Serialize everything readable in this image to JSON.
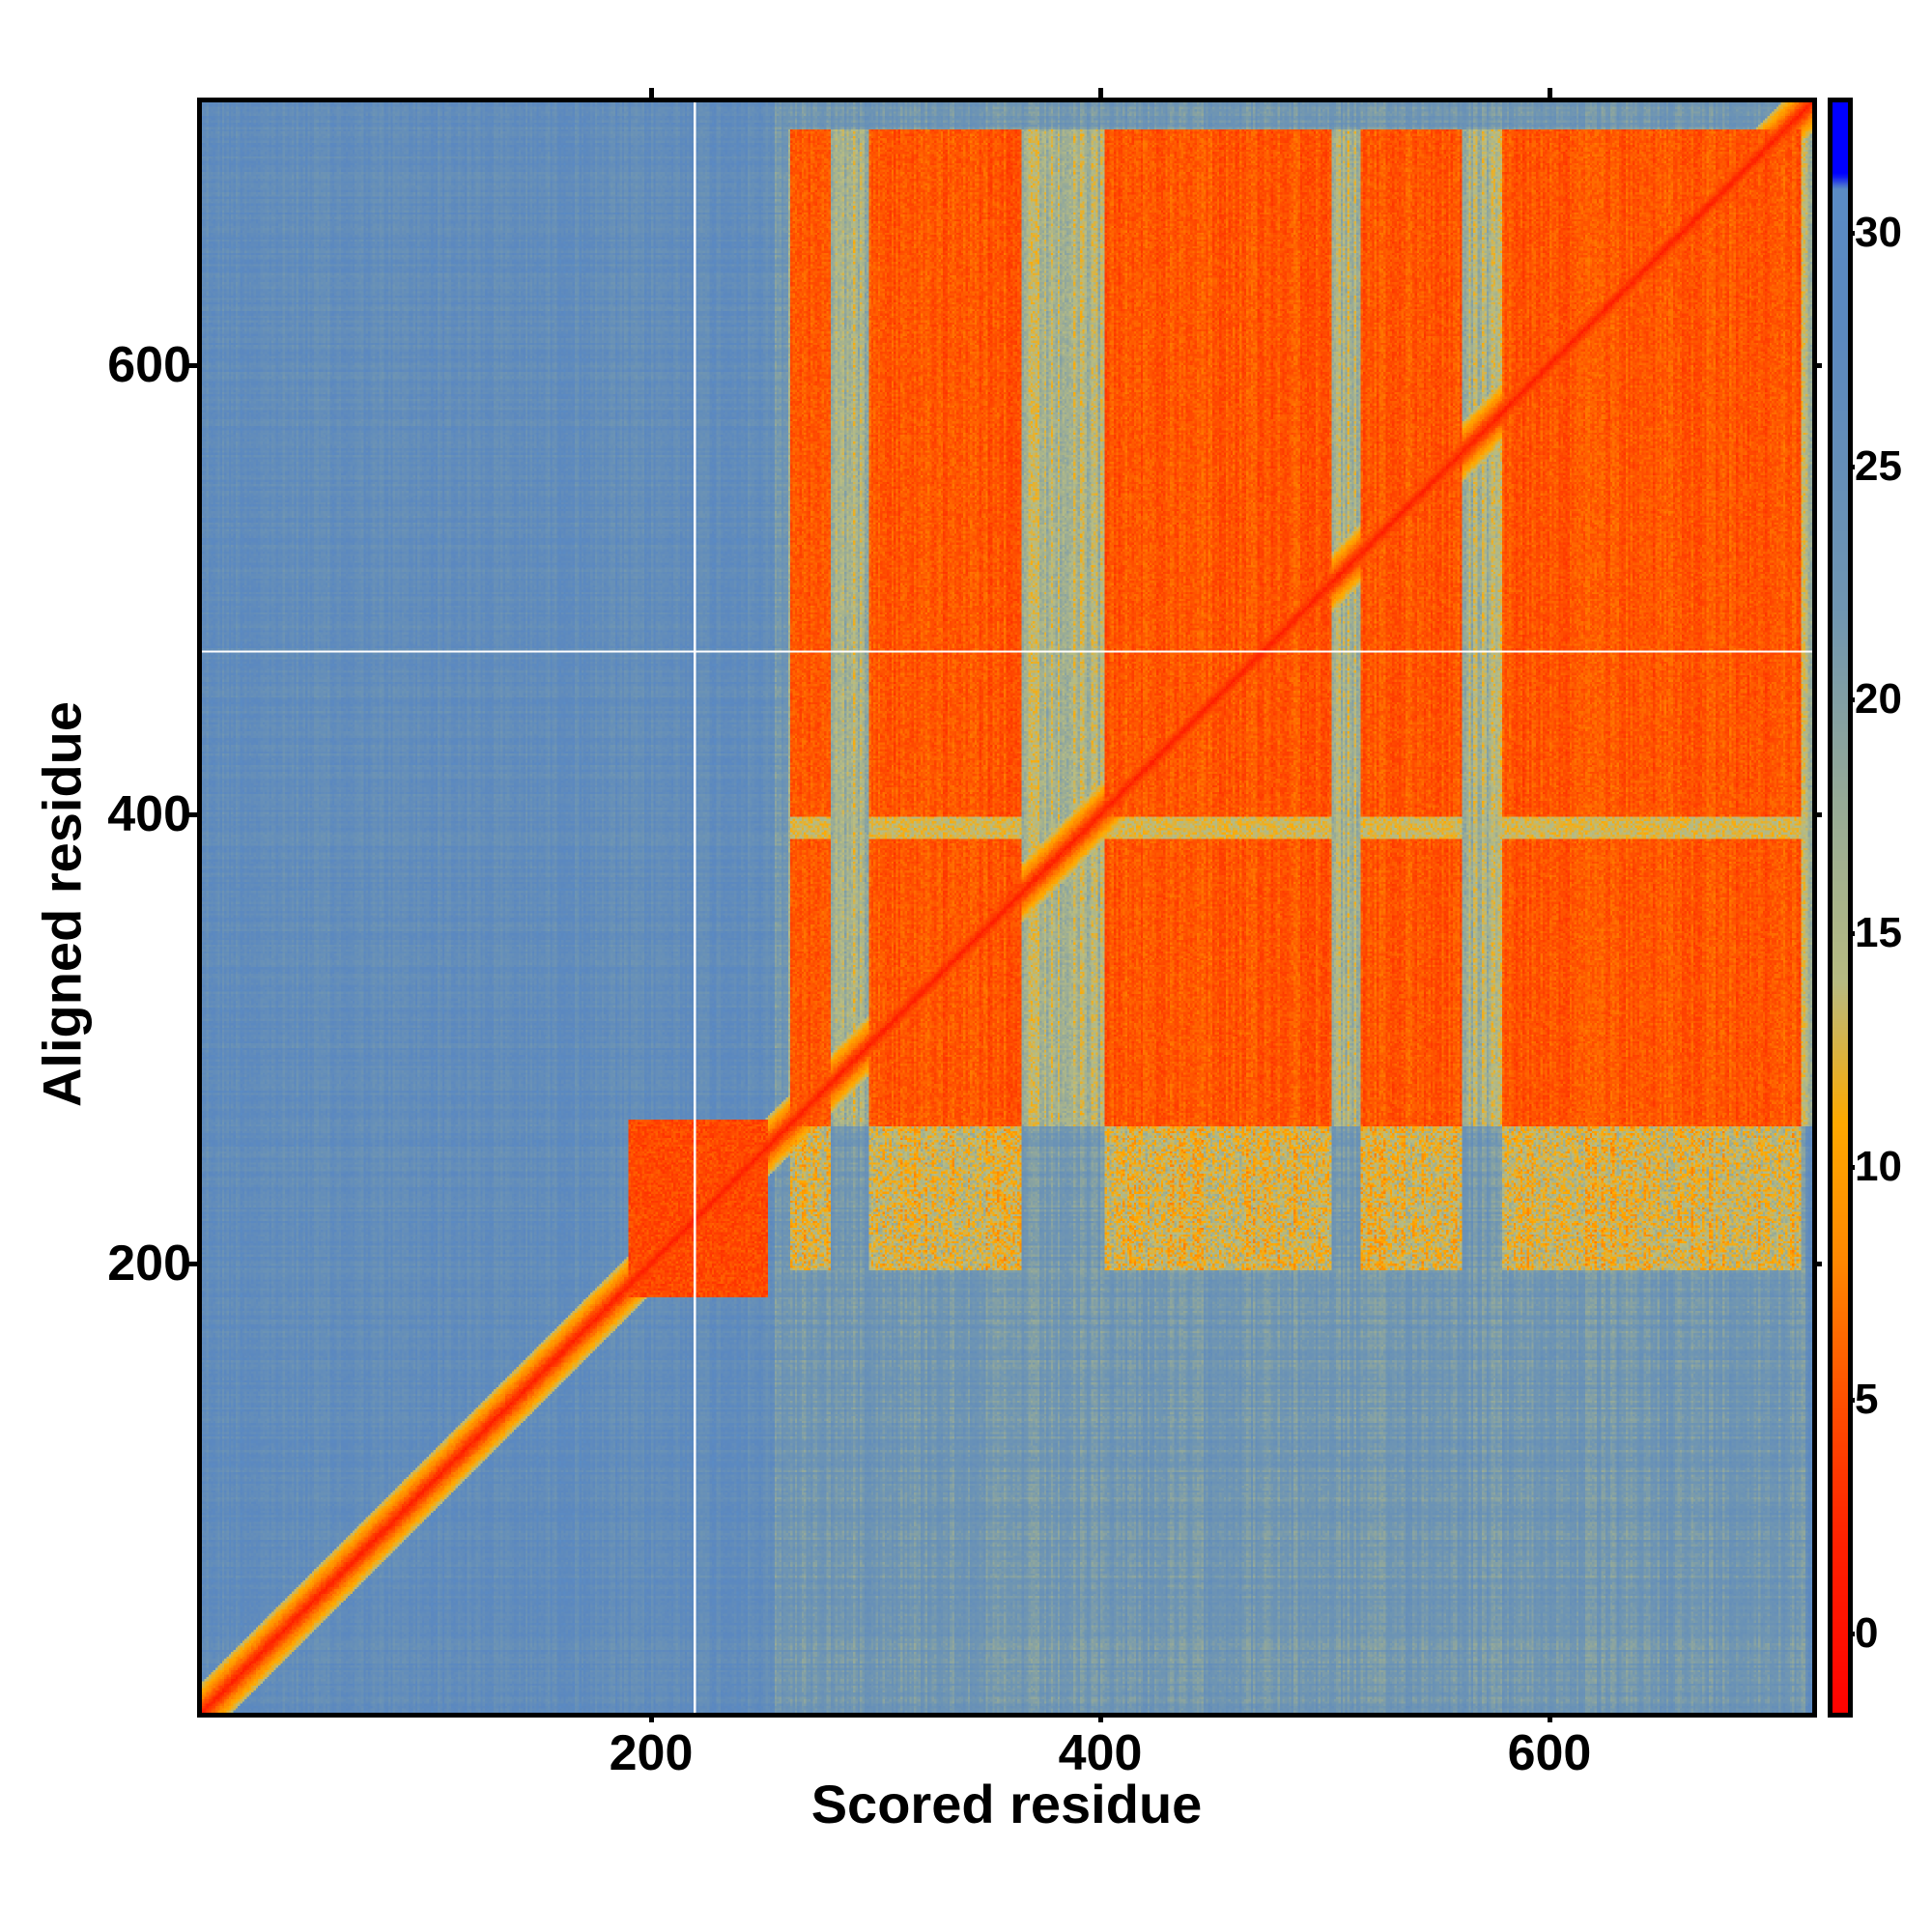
{
  "chart_data": {
    "type": "heatmap",
    "title": "",
    "xlabel": "Scored residue",
    "ylabel": "Aligned residue",
    "n_residues": 717,
    "xlim": [
      1,
      717
    ],
    "ylim": [
      1,
      717
    ],
    "x_ticks": [
      200,
      400,
      600
    ],
    "y_ticks": [
      200,
      400,
      600
    ],
    "colorbar": {
      "range": [
        -1.7,
        32.8
      ],
      "ticks": [
        0,
        5,
        10,
        15,
        20,
        25,
        30
      ],
      "stops": [
        {
          "value": -2,
          "color": "#ff0000"
        },
        {
          "value": 2,
          "color": "#ff2200"
        },
        {
          "value": 5,
          "color": "#ff5000"
        },
        {
          "value": 8,
          "color": "#ff8800"
        },
        {
          "value": 11,
          "color": "#ffaa00"
        },
        {
          "value": 14,
          "color": "#b8bc82"
        },
        {
          "value": 18,
          "color": "#96aa98"
        },
        {
          "value": 22,
          "color": "#7096b2"
        },
        {
          "value": 28,
          "color": "#5b88bf"
        },
        {
          "value": 31,
          "color": "#5a8cc6"
        },
        {
          "value": 31.3,
          "color": "#0000ff"
        },
        {
          "value": 33,
          "color": "#0000ff"
        }
      ]
    },
    "background_error": 26,
    "diagonal_error": 1,
    "confident_column_blocks": [
      [
        263,
        280
      ],
      [
        298,
        365
      ],
      [
        403,
        503
      ],
      [
        517,
        561
      ],
      [
        580,
        671
      ],
      [
        671,
        712
      ]
    ],
    "confident_row_range": [
      262,
      705
    ],
    "row_gap": [
      390,
      399
    ],
    "local_domain": [
      191,
      252
    ],
    "gridline_residues": {
      "x": 220,
      "y": 473
    }
  }
}
